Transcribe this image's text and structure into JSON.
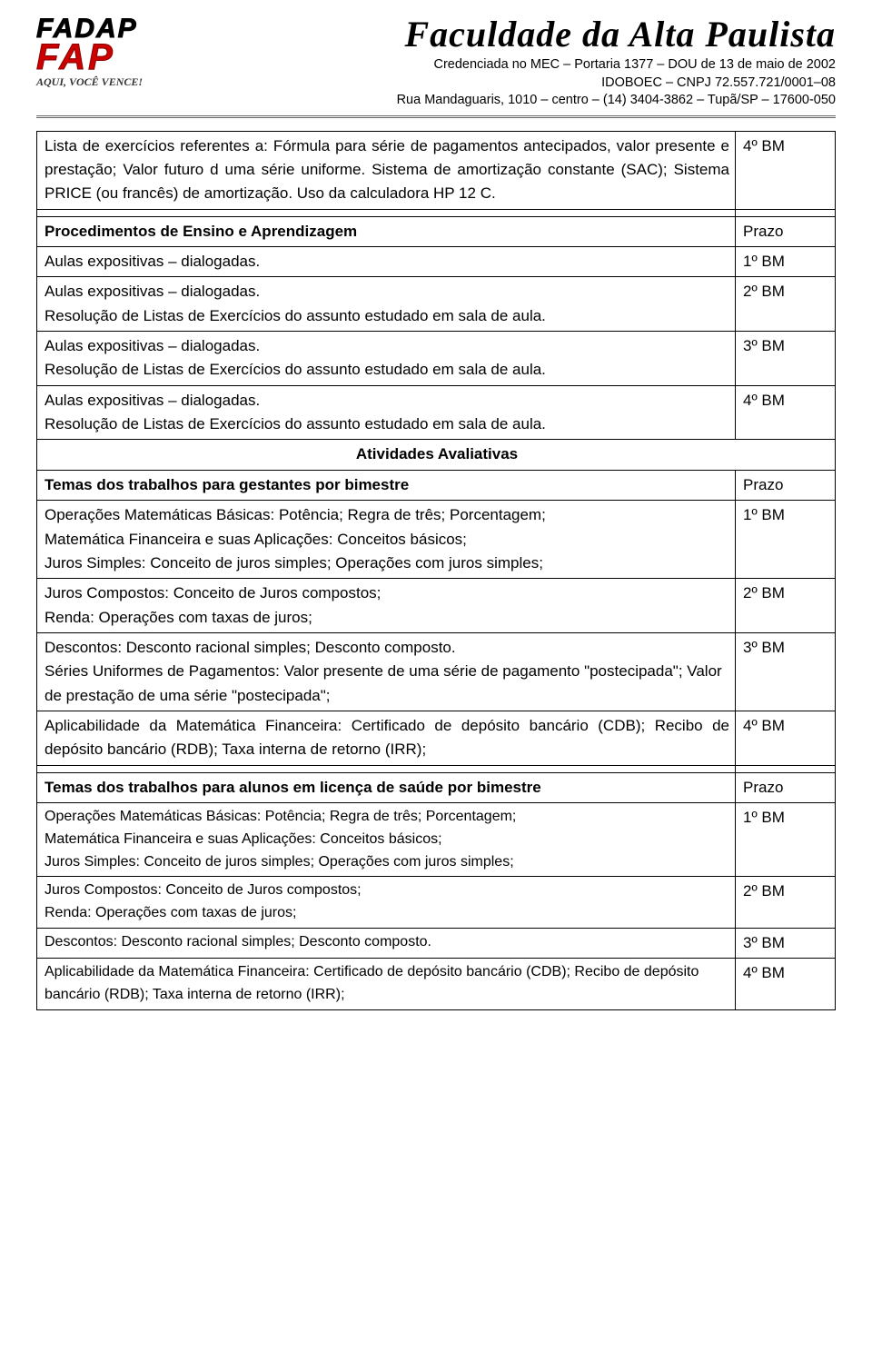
{
  "header": {
    "logo_line1": "FADAP",
    "logo_line2": "FAP",
    "logo_slogan": "AQUI, VOCÊ VENCE!",
    "title": "Faculdade da Alta Paulista",
    "line1": "Credenciada no MEC – Portaria 1377 – DOU de 13 de maio de 2002",
    "line2": "IDOBOEC – CNPJ 72.557.721/0001–08",
    "line3": "Rua Mandaguaris, 1010 – centro – (14) 3404-3862 – Tupã/SP – 17600-050"
  },
  "intro": {
    "text": "Lista de exercícios referentes a: Fórmula para série de pagamentos antecipados, valor presente e prestação; Valor futuro d uma série uniforme. Sistema de amortização constante (SAC); Sistema PRICE (ou francês) de amortização. Uso da calculadora HP 12 C.",
    "prazo": "4º BM"
  },
  "procedimentos": {
    "heading": "Procedimentos de Ensino e Aprendizagem",
    "heading_prazo": "Prazo",
    "rows": [
      {
        "text": "Aulas expositivas – dialogadas.",
        "prazo": "1º BM"
      },
      {
        "text": "Aulas expositivas – dialogadas.\nResolução de Listas de Exercícios do assunto estudado em sala de aula.",
        "prazo": "2º BM"
      },
      {
        "text": "Aulas expositivas – dialogadas.\nResolução de Listas de Exercícios do assunto estudado em sala de aula.",
        "prazo": "3º BM"
      },
      {
        "text": "Aulas expositivas – dialogadas.\nResolução de Listas de Exercícios do assunto estudado em sala de aula.",
        "prazo": "4º BM"
      }
    ]
  },
  "atividades_heading": "Atividades Avaliativas",
  "gestantes": {
    "heading": "Temas dos trabalhos para gestantes por bimestre",
    "heading_prazo": "Prazo",
    "rows": [
      {
        "text": "Operações Matemáticas Básicas: Potência; Regra de três; Porcentagem;\n Matemática Financeira e suas Aplicações: Conceitos básicos;\n Juros Simples: Conceito de juros simples; Operações com juros simples;",
        "prazo": "1º BM"
      },
      {
        "text": "Juros Compostos: Conceito de Juros compostos;\nRenda: Operações com taxas de juros;",
        "prazo": "2º BM"
      },
      {
        "text": "  Descontos: Desconto racional simples; Desconto composto.\n  Séries Uniformes de Pagamentos: Valor presente de uma série de pagamento \"postecipada\"; Valor de prestação de uma série \"postecipada\";",
        "prazo": "3º BM"
      },
      {
        "text": "Aplicabilidade da Matemática Financeira:  Certificado de depósito bancário (CDB); Recibo de depósito bancário (RDB); Taxa interna de retorno (IRR);",
        "prazo": "4º BM"
      }
    ]
  },
  "licenca": {
    "heading": "Temas dos trabalhos para alunos em licença de saúde por bimestre",
    "heading_prazo": "Prazo",
    "rows": [
      {
        "text": "Operações Matemáticas Básicas: Potência; Regra de três; Porcentagem;\n Matemática Financeira e suas Aplicações: Conceitos básicos;\nJuros Simples: Conceito de juros simples; Operações com juros simples;",
        "prazo": "1º BM"
      },
      {
        "text": "Juros Compostos: Conceito de Juros compostos;\n  Renda: Operações com taxas de juros;",
        "prazo": "2º BM"
      },
      {
        "text": "Descontos: Desconto racional simples; Desconto composto.",
        "prazo": "3º BM"
      },
      {
        "text": " Aplicabilidade da Matemática Financeira:  Certificado de depósito bancário (CDB); Recibo de depósito bancário (RDB); Taxa interna de retorno (IRR);",
        "prazo": "4º BM"
      }
    ]
  }
}
